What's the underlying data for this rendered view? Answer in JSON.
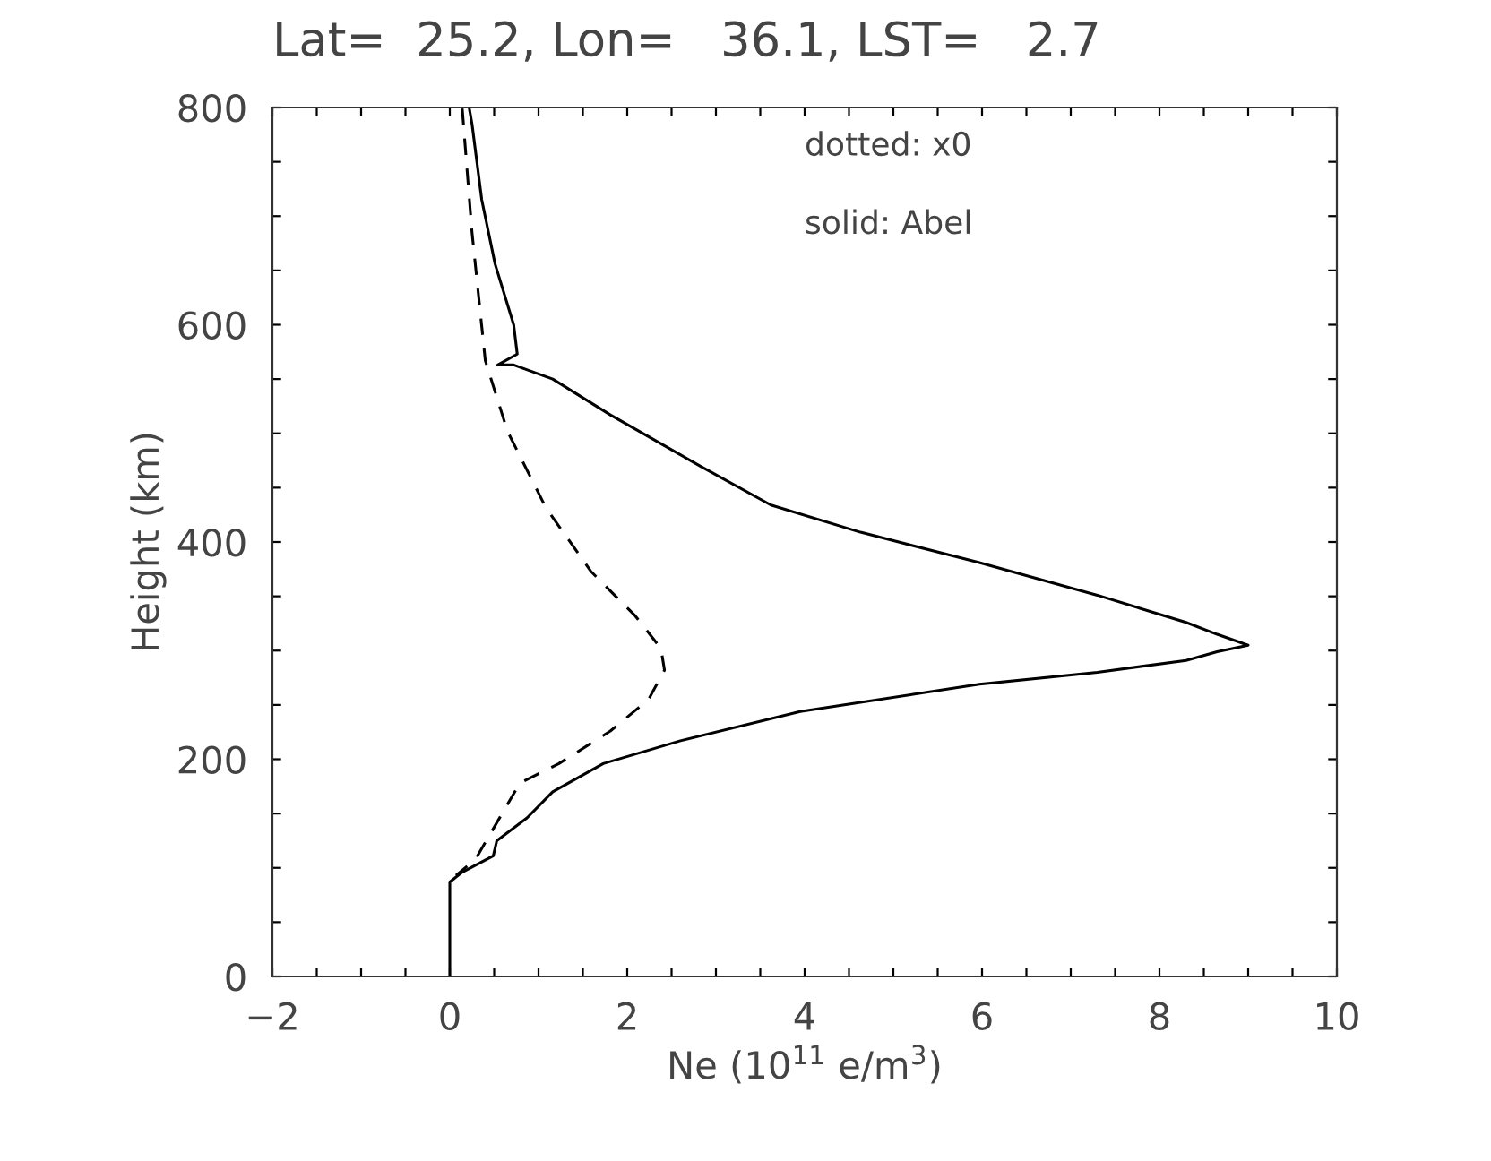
{
  "chart_data": {
    "type": "line",
    "title": "Lat=  25.2, Lon=   36.1, LST=   2.7",
    "xlabel": "Ne (10$^{11}$ e/m$^{3}$)",
    "ylabel": "Height (km)",
    "annotations": [
      "dotted: x0",
      "solid: Abel"
    ],
    "xlim": [
      -2,
      10
    ],
    "ylim": [
      0,
      800
    ],
    "xticks": [
      -2,
      {
        "value": -1.5,
        "label": null
      },
      {
        "value": -1,
        "label": null
      },
      {
        "value": -0.5,
        "label": null
      },
      0,
      {
        "value": 0.5,
        "label": null
      },
      {
        "value": 1,
        "label": null
      },
      {
        "value": 1.5,
        "label": null
      },
      2,
      {
        "value": 2.5,
        "label": null
      },
      {
        "value": 3,
        "label": null
      },
      {
        "value": 3.5,
        "label": null
      },
      4,
      {
        "value": 4.5,
        "label": null
      },
      {
        "value": 5,
        "label": null
      },
      {
        "value": 5.5,
        "label": null
      },
      6,
      {
        "value": 6.5,
        "label": null
      },
      {
        "value": 7,
        "label": null
      },
      {
        "value": 7.5,
        "label": null
      },
      8,
      {
        "value": 8.5,
        "label": null
      },
      {
        "value": 9,
        "label": null
      },
      {
        "value": 9.5,
        "label": null
      },
      10
    ],
    "yticks": [
      0,
      {
        "value": 50,
        "label": null
      },
      {
        "value": 100,
        "label": null
      },
      {
        "value": 150,
        "label": null
      },
      200,
      {
        "value": 250,
        "label": null
      },
      {
        "value": 300,
        "label": null
      },
      {
        "value": 350,
        "label": null
      },
      400,
      {
        "value": 450,
        "label": null
      },
      {
        "value": 500,
        "label": null
      },
      {
        "value": 550,
        "label": null
      },
      600,
      {
        "value": 650,
        "label": null
      },
      {
        "value": 700,
        "label": null
      },
      {
        "value": 750,
        "label": null
      },
      800
    ],
    "grid": false,
    "marker": "none",
    "series": [
      {
        "color": "#000000",
        "line_style": "dashed",
        "x": [
          0.14,
          0.25,
          0.4,
          0.65,
          1.08,
          1.59,
          2.09,
          2.38,
          2.42,
          2.24,
          1.81,
          1.23,
          0.79,
          0.54,
          0.29,
          0.07
        ],
        "values": [
          799,
          685,
          567,
          502,
          432,
          373,
          332,
          302,
          282,
          255,
          226,
          196,
          178,
          143,
          108,
          93
        ]
      },
      {
        "color": "#000000",
        "line_style": "solid",
        "x": [
          0,
          0,
          0.14,
          0.49,
          0.53,
          0.87,
          1.16,
          1.73,
          2.6,
          3.95,
          5.97,
          7.3,
          8.3,
          8.65,
          9.0,
          8.65,
          8.3,
          7.3,
          5.97,
          4.63,
          3.62,
          2.82,
          1.81,
          1.16,
          0.72,
          0.54,
          0.76,
          0.72,
          0.51,
          0.36,
          0.25,
          0.22
        ],
        "values": [
          0,
          87,
          96,
          111,
          125,
          146,
          170,
          196,
          217,
          244,
          269,
          280,
          291,
          299,
          305,
          315,
          326,
          351,
          381,
          409,
          434,
          470,
          517,
          550,
          563,
          563,
          573,
          600,
          656,
          715,
          785,
          799
        ]
      }
    ]
  }
}
